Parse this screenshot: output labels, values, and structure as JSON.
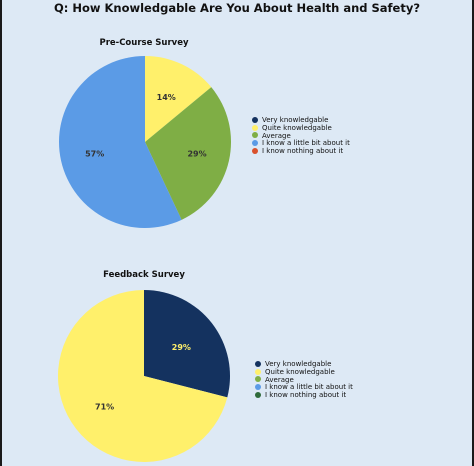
{
  "title": "Q: How Knowledgable Are You About Health and Safety?",
  "chart_data": [
    {
      "type": "pie",
      "title": "Pre-Course Survey",
      "categories": [
        "Very knowledgable",
        "Quite knowledgable",
        "Average",
        "I know a little bit about it",
        "I know nothing about it"
      ],
      "values": [
        0,
        14,
        29,
        57,
        0
      ],
      "labels": [
        "",
        "14%",
        "29%",
        "57%",
        ""
      ],
      "colors": [
        "#14325f",
        "#fff06b",
        "#7fae45",
        "#5b9be6",
        "#d9512c"
      ],
      "label_colors": [
        "#ffffff",
        "#333333",
        "#333333",
        "#333333",
        "#333333"
      ],
      "legend": "right"
    },
    {
      "type": "pie",
      "title": "Feedback Survey",
      "categories": [
        "Very knowledgable",
        "Quite knowledgable",
        "Average",
        "I know a little bit about it",
        "I know nothing about it"
      ],
      "values": [
        29,
        71,
        0,
        0,
        0
      ],
      "labels": [
        "29%",
        "71%",
        "",
        "",
        ""
      ],
      "colors": [
        "#14325f",
        "#fff06b",
        "#7fae45",
        "#5b9be6",
        "#2f6b3a"
      ],
      "label_colors": [
        "#fff06b",
        "#333333",
        "#333333",
        "#333333",
        "#333333"
      ],
      "legend": "right"
    }
  ]
}
